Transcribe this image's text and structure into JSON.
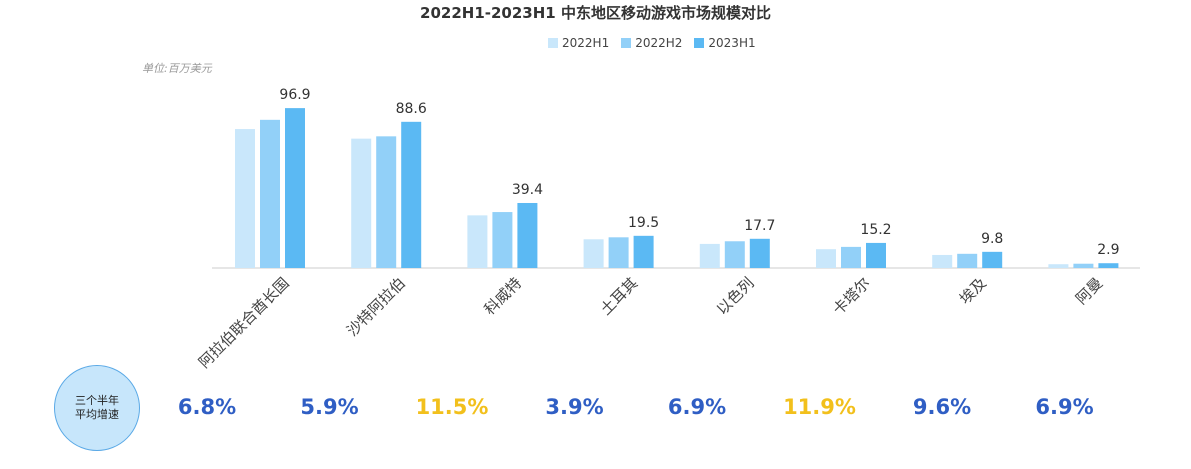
{
  "chart_data": {
    "type": "bar",
    "title": "2022H1-2023H1  中东地区移动游戏市场规模对比",
    "unit": "单位:百万美元",
    "categories": [
      "阿拉伯联合酋长国",
      "沙特阿拉伯",
      "科威特",
      "土耳其",
      "以色列",
      "卡塔尔",
      "埃及",
      "阿曼"
    ],
    "series": [
      {
        "name": "2022H1",
        "color": "#c9e7fb",
        "values": [
          84.2,
          78.4,
          31.9,
          17.4,
          14.6,
          11.4,
          7.9,
          2.3
        ]
      },
      {
        "name": "2022H2",
        "color": "#92d0f8",
        "values": [
          89.8,
          79.8,
          33.9,
          18.6,
          16.2,
          12.8,
          8.6,
          2.6
        ]
      },
      {
        "name": "2023H1",
        "color": "#5bb9f3",
        "values": [
          96.9,
          88.6,
          39.4,
          19.5,
          17.7,
          15.2,
          9.8,
          2.9
        ]
      }
    ],
    "data_labels": [
      "96.9",
      "88.6",
      "39.4",
      "19.5",
      "17.7",
      "15.2",
      "9.8",
      "2.9"
    ],
    "ylim": [
      0,
      100
    ],
    "grid": false,
    "legend_position": "top"
  },
  "growth": {
    "label_line1": "三个半年",
    "label_line2": "平均增速",
    "values": [
      {
        "text": "6.8%",
        "color": "#2f5ec4"
      },
      {
        "text": "5.9%",
        "color": "#2f5ec4"
      },
      {
        "text": "11.5%",
        "color": "#f2c01c"
      },
      {
        "text": "3.9%",
        "color": "#2f5ec4"
      },
      {
        "text": "6.9%",
        "color": "#2f5ec4"
      },
      {
        "text": "11.9%",
        "color": "#f2c01c"
      },
      {
        "text": "9.6%",
        "color": "#2f5ec4"
      },
      {
        "text": "6.9%",
        "color": "#2f5ec4"
      }
    ]
  }
}
